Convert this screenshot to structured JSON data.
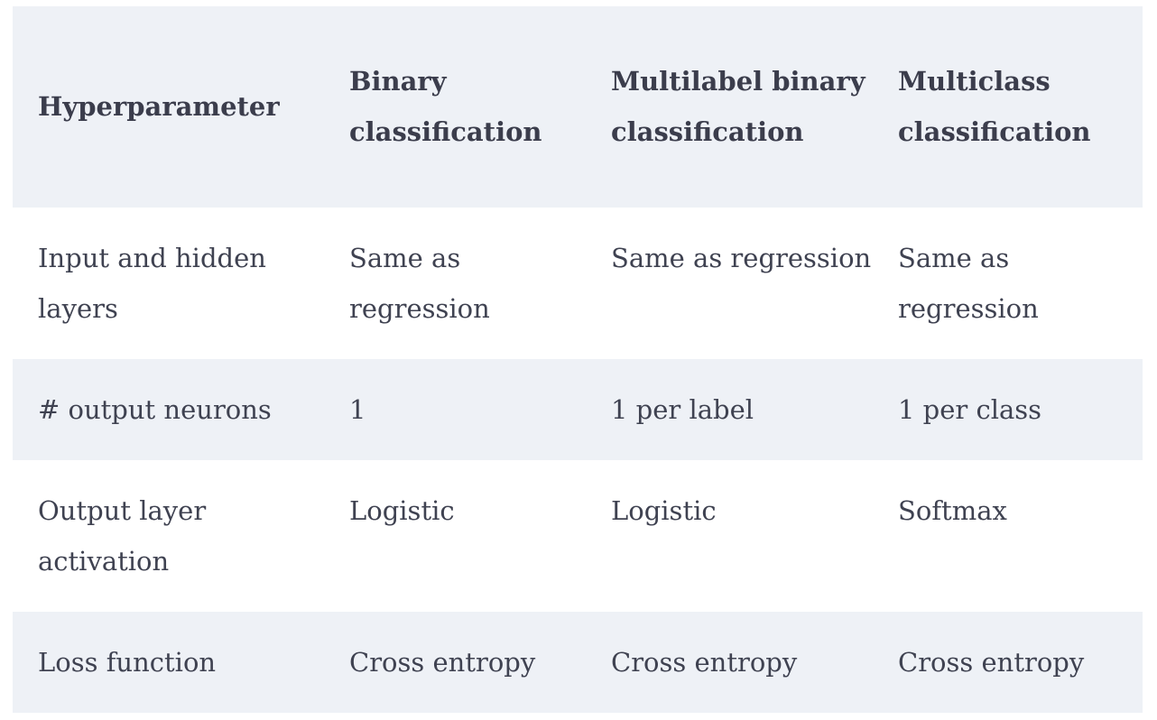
{
  "table": {
    "headers": [
      "Hyperparameter",
      "Binary classification",
      "Multilabel binary classification",
      "Multiclass classification"
    ],
    "rows": [
      [
        "Input and hidden layers",
        "Same as regression",
        "Same as regression",
        "Same as regression"
      ],
      [
        "# output neurons",
        "1",
        "1 per label",
        "1 per class"
      ],
      [
        "Output layer activation",
        "Logistic",
        "Logistic",
        "Softmax"
      ],
      [
        "Loss function",
        "Cross entropy",
        "Cross entropy",
        "Cross entropy"
      ]
    ],
    "colors": {
      "stripe": "#eef1f6",
      "text": "#3f4251",
      "header_text": "#3b3d4c"
    }
  }
}
